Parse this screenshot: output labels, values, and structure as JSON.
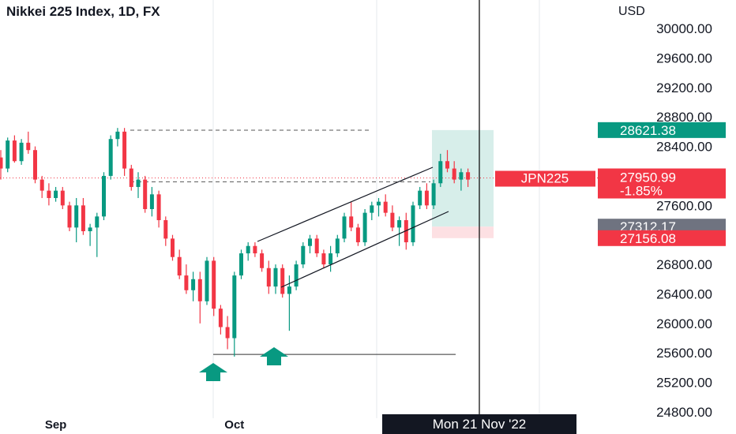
{
  "header": {
    "title": "Nikkei 225 Index, 1D, FX",
    "currency": "USD"
  },
  "colors": {
    "up": "#089981",
    "down": "#f23645",
    "text": "#131722",
    "grey_tag": "#6f7380",
    "target_fill": "#d7eeea",
    "stop_fill": "#fde0e3"
  },
  "chart_data": {
    "type": "candlestick",
    "title": "Nikkei 225 Index, 1D, FX",
    "ylabel": "USD",
    "ylim": [
      24800,
      30200
    ],
    "y_ticks": [
      "30000.00",
      "29600.00",
      "29200.00",
      "28800.00",
      "28400.00",
      "28000.00",
      "27600.00",
      "27200.00",
      "26800.00",
      "26400.00",
      "26000.00",
      "25600.00",
      "25200.00",
      "24800.00"
    ],
    "x_labels": [
      {
        "label": "Sep",
        "index": 8
      },
      {
        "label": "Oct",
        "index": 34
      },
      {
        "label": "Nov",
        "index": 60
      }
    ],
    "candles": [
      [
        28250,
        28350,
        27950,
        28100
      ],
      [
        28100,
        28520,
        28050,
        28480
      ],
      [
        28480,
        28550,
        28180,
        28200
      ],
      [
        28200,
        28500,
        28150,
        28450
      ],
      [
        28450,
        28600,
        28300,
        28350
      ],
      [
        28350,
        28400,
        27900,
        27950
      ],
      [
        27950,
        28000,
        27700,
        27800
      ],
      [
        27800,
        27900,
        27600,
        27700
      ],
      [
        27700,
        27850,
        27650,
        27800
      ],
      [
        27800,
        27850,
        27550,
        27600
      ],
      [
        27600,
        27650,
        27250,
        27300
      ],
      [
        27300,
        27700,
        27100,
        27600
      ],
      [
        27600,
        27700,
        27200,
        27250
      ],
      [
        27250,
        27350,
        27050,
        27300
      ],
      [
        27300,
        27500,
        26900,
        27450
      ],
      [
        27450,
        28050,
        27400,
        28000
      ],
      [
        28000,
        28550,
        27950,
        28500
      ],
      [
        28500,
        28650,
        28400,
        28600
      ],
      [
        28600,
        28650,
        28000,
        28100
      ],
      [
        28100,
        28150,
        27800,
        27850
      ],
      [
        27850,
        28050,
        27700,
        27950
      ],
      [
        27950,
        28000,
        27500,
        27550
      ],
      [
        27550,
        27850,
        27450,
        27750
      ],
      [
        27750,
        27800,
        27300,
        27400
      ],
      [
        27400,
        27450,
        27050,
        27150
      ],
      [
        27150,
        27200,
        26850,
        26900
      ],
      [
        26900,
        27000,
        26600,
        26650
      ],
      [
        26650,
        26800,
        26400,
        26450
      ],
      [
        26450,
        26700,
        26300,
        26600
      ],
      [
        26600,
        26700,
        26000,
        26300
      ],
      [
        26300,
        26900,
        26250,
        26850
      ],
      [
        26850,
        26900,
        26100,
        26200
      ],
      [
        26200,
        26250,
        25850,
        25950
      ],
      [
        25950,
        26100,
        25650,
        25800
      ],
      [
        25800,
        26700,
        25550,
        26650
      ],
      [
        26650,
        27000,
        26600,
        26950
      ],
      [
        26950,
        27100,
        26850,
        27050
      ],
      [
        27050,
        27100,
        26900,
        26950
      ],
      [
        26950,
        27000,
        26700,
        26750
      ],
      [
        26750,
        26850,
        26400,
        26500
      ],
      [
        26500,
        26800,
        26400,
        26750
      ],
      [
        26750,
        26800,
        26350,
        26400
      ],
      [
        26400,
        26650,
        25900,
        26500
      ],
      [
        26500,
        26850,
        26450,
        26800
      ],
      [
        26800,
        27100,
        26750,
        27050
      ],
      [
        27050,
        27200,
        26950,
        27150
      ],
      [
        27150,
        27200,
        26900,
        26950
      ],
      [
        26950,
        27000,
        26750,
        26800
      ],
      [
        26800,
        27050,
        26700,
        26950
      ],
      [
        26950,
        27200,
        26900,
        27150
      ],
      [
        27150,
        27500,
        27100,
        27450
      ],
      [
        27450,
        27650,
        27250,
        27300
      ],
      [
        27300,
        27350,
        27050,
        27100
      ],
      [
        27100,
        27550,
        27050,
        27500
      ],
      [
        27500,
        27650,
        27400,
        27600
      ],
      [
        27600,
        27700,
        27450,
        27650
      ],
      [
        27650,
        27750,
        27450,
        27500
      ],
      [
        27500,
        27600,
        27250,
        27300
      ],
      [
        27300,
        27450,
        27050,
        27400
      ],
      [
        27400,
        27500,
        27000,
        27100
      ],
      [
        27100,
        27650,
        27050,
        27600
      ],
      [
        27600,
        27850,
        27550,
        27800
      ],
      [
        27800,
        27900,
        27550,
        27600
      ],
      [
        27600,
        27950,
        27550,
        27900
      ],
      [
        27900,
        28300,
        27850,
        28200
      ],
      [
        28200,
        28350,
        28050,
        28100
      ],
      [
        28100,
        28200,
        27900,
        27950
      ],
      [
        27950,
        28100,
        27800,
        28050
      ],
      [
        28050,
        28100,
        27850,
        27950
      ]
    ],
    "annotations": {
      "current_price": 27950.99,
      "change_percent": "-1.85%",
      "symbol": "JPN225",
      "target_price": 28621.38,
      "entry_price": 27312.17,
      "stop_price": 27156.08,
      "crosshair_date": "Mon 21 Nov '22",
      "resistance_level": 28620,
      "mid_level": 27920,
      "support_level": 25580
    }
  }
}
